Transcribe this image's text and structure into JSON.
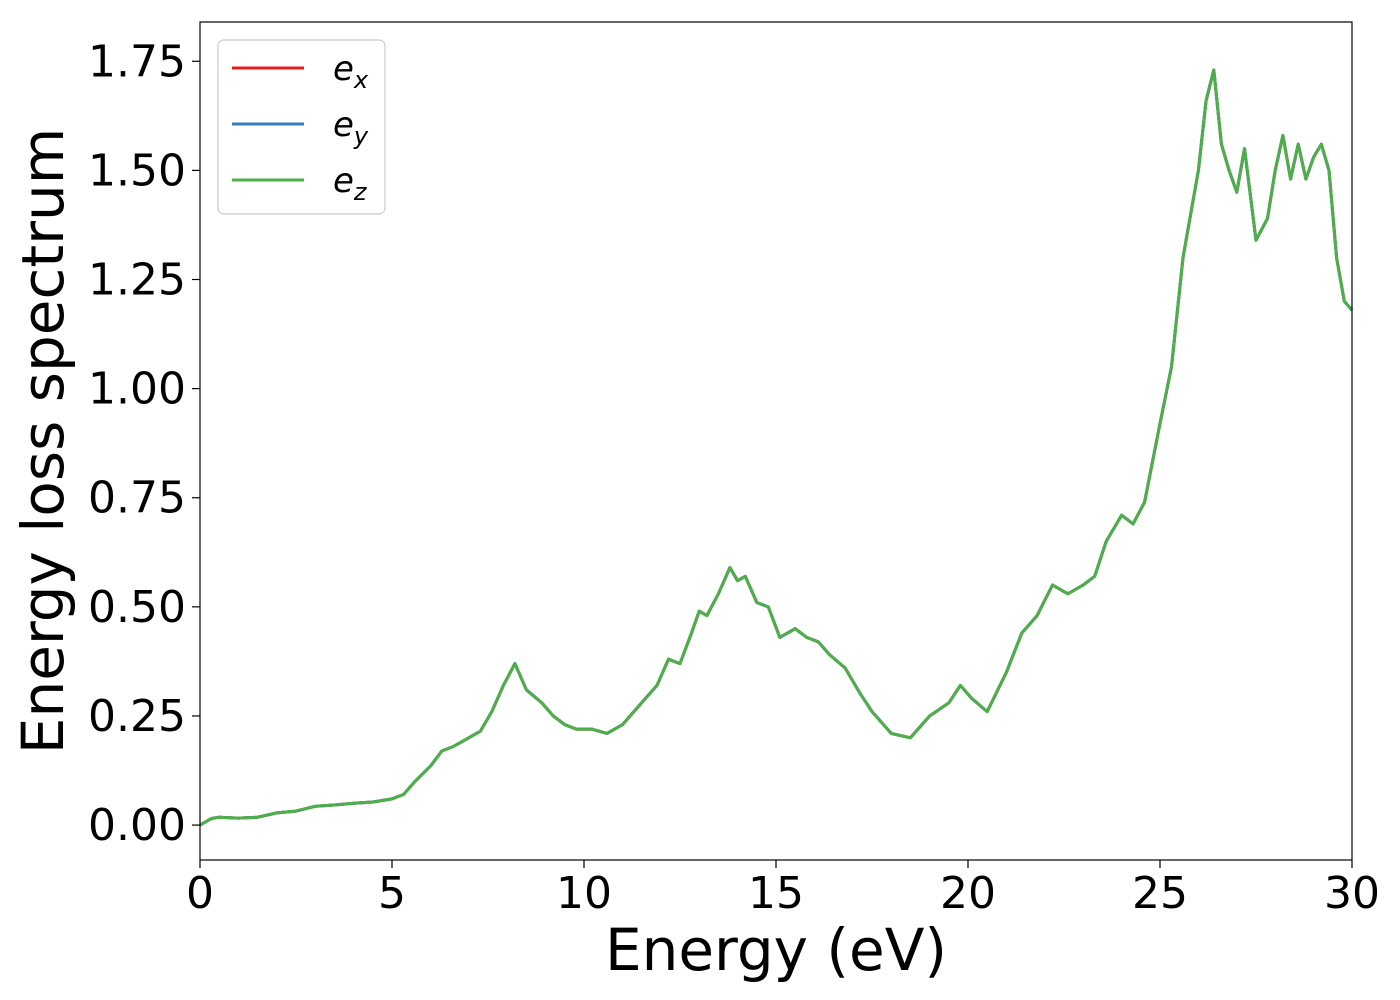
{
  "chart_data": {
    "type": "line",
    "title": "",
    "xlabel": "Energy (eV)",
    "ylabel": "Energy loss spectrum",
    "xlim": [
      0,
      30
    ],
    "ylim": [
      -0.08,
      1.84
    ],
    "xticks": [
      0,
      5,
      10,
      15,
      20,
      25,
      30
    ],
    "xtick_labels": [
      "0",
      "5",
      "10",
      "15",
      "20",
      "25",
      "30"
    ],
    "yticks": [
      0,
      0.25,
      0.5,
      0.75,
      1.0,
      1.25,
      1.5,
      1.75
    ],
    "ytick_labels": [
      "0.00",
      "0.25",
      "0.50",
      "0.75",
      "1.00",
      "1.25",
      "1.50",
      "1.75"
    ],
    "grid": false,
    "legend_position": "top-left",
    "x": [
      0,
      0.3,
      0.5,
      1.0,
      1.5,
      2.0,
      2.5,
      3.0,
      3.5,
      4.0,
      4.5,
      5.0,
      5.3,
      5.6,
      6.0,
      6.3,
      6.6,
      7.0,
      7.3,
      7.6,
      7.9,
      8.2,
      8.5,
      8.9,
      9.2,
      9.5,
      9.8,
      10.2,
      10.6,
      11.0,
      11.3,
      11.6,
      11.9,
      12.2,
      12.5,
      12.8,
      13.0,
      13.2,
      13.5,
      13.8,
      14.0,
      14.2,
      14.5,
      14.8,
      15.1,
      15.5,
      15.8,
      16.1,
      16.4,
      16.8,
      17.2,
      17.5,
      18.0,
      18.5,
      19.0,
      19.5,
      19.8,
      20.1,
      20.5,
      21.0,
      21.4,
      21.8,
      22.2,
      22.6,
      23.0,
      23.3,
      23.6,
      24.0,
      24.3,
      24.6,
      25.0,
      25.3,
      25.6,
      25.8,
      26.0,
      26.2,
      26.4,
      26.6,
      26.8,
      27.0,
      27.2,
      27.5,
      27.8,
      28.0,
      28.2,
      28.4,
      28.6,
      28.8,
      29.0,
      29.2,
      29.4,
      29.6,
      29.8,
      30.0
    ],
    "series": [
      {
        "name": "e_x",
        "legend_base": "e",
        "legend_sub": "x",
        "color": "#e41a1c",
        "y": [
          0.0,
          0.015,
          0.018,
          0.016,
          0.018,
          0.028,
          0.032,
          0.043,
          0.046,
          0.05,
          0.053,
          0.06,
          0.07,
          0.1,
          0.135,
          0.17,
          0.18,
          0.2,
          0.215,
          0.26,
          0.32,
          0.37,
          0.31,
          0.28,
          0.25,
          0.23,
          0.22,
          0.22,
          0.21,
          0.23,
          0.26,
          0.29,
          0.32,
          0.38,
          0.37,
          0.44,
          0.49,
          0.48,
          0.53,
          0.59,
          0.56,
          0.57,
          0.51,
          0.5,
          0.43,
          0.45,
          0.43,
          0.42,
          0.39,
          0.36,
          0.3,
          0.26,
          0.21,
          0.2,
          0.25,
          0.28,
          0.32,
          0.29,
          0.26,
          0.35,
          0.44,
          0.48,
          0.55,
          0.53,
          0.55,
          0.57,
          0.65,
          0.71,
          0.69,
          0.74,
          0.92,
          1.05,
          1.3,
          1.4,
          1.5,
          1.66,
          1.73,
          1.56,
          1.5,
          1.45,
          1.55,
          1.34,
          1.39,
          1.5,
          1.58,
          1.48,
          1.56,
          1.48,
          1.53,
          1.56,
          1.5,
          1.3,
          1.2,
          1.18
        ]
      },
      {
        "name": "e_y",
        "legend_base": "e",
        "legend_sub": "y",
        "color": "#377eb8",
        "y": [
          0.0,
          0.015,
          0.018,
          0.016,
          0.018,
          0.028,
          0.032,
          0.043,
          0.046,
          0.05,
          0.053,
          0.06,
          0.07,
          0.1,
          0.135,
          0.17,
          0.18,
          0.2,
          0.215,
          0.26,
          0.32,
          0.37,
          0.31,
          0.28,
          0.25,
          0.23,
          0.22,
          0.22,
          0.21,
          0.23,
          0.26,
          0.29,
          0.32,
          0.38,
          0.37,
          0.44,
          0.49,
          0.48,
          0.53,
          0.59,
          0.56,
          0.57,
          0.51,
          0.5,
          0.43,
          0.45,
          0.43,
          0.42,
          0.39,
          0.36,
          0.3,
          0.26,
          0.21,
          0.2,
          0.25,
          0.28,
          0.32,
          0.29,
          0.26,
          0.35,
          0.44,
          0.48,
          0.55,
          0.53,
          0.55,
          0.57,
          0.65,
          0.71,
          0.69,
          0.74,
          0.92,
          1.05,
          1.3,
          1.4,
          1.5,
          1.66,
          1.73,
          1.56,
          1.5,
          1.45,
          1.55,
          1.34,
          1.39,
          1.5,
          1.58,
          1.48,
          1.56,
          1.48,
          1.53,
          1.56,
          1.5,
          1.3,
          1.2,
          1.18
        ]
      },
      {
        "name": "e_z",
        "legend_base": "e",
        "legend_sub": "z",
        "color": "#4daf4a",
        "y": [
          0.0,
          0.015,
          0.018,
          0.016,
          0.018,
          0.028,
          0.032,
          0.043,
          0.046,
          0.05,
          0.053,
          0.06,
          0.07,
          0.1,
          0.135,
          0.17,
          0.18,
          0.2,
          0.215,
          0.26,
          0.32,
          0.37,
          0.31,
          0.28,
          0.25,
          0.23,
          0.22,
          0.22,
          0.21,
          0.23,
          0.26,
          0.29,
          0.32,
          0.38,
          0.37,
          0.44,
          0.49,
          0.48,
          0.53,
          0.59,
          0.56,
          0.57,
          0.51,
          0.5,
          0.43,
          0.45,
          0.43,
          0.42,
          0.39,
          0.36,
          0.3,
          0.26,
          0.21,
          0.2,
          0.25,
          0.28,
          0.32,
          0.29,
          0.26,
          0.35,
          0.44,
          0.48,
          0.55,
          0.53,
          0.55,
          0.57,
          0.65,
          0.71,
          0.69,
          0.74,
          0.92,
          1.05,
          1.3,
          1.4,
          1.5,
          1.66,
          1.73,
          1.56,
          1.5,
          1.45,
          1.55,
          1.34,
          1.39,
          1.5,
          1.58,
          1.48,
          1.56,
          1.48,
          1.53,
          1.56,
          1.5,
          1.3,
          1.2,
          1.18
        ]
      }
    ]
  }
}
